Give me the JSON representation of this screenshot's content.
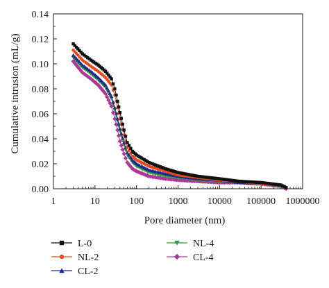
{
  "chart_data": {
    "type": "scatter",
    "xlabel": "Pore diameter (nm)",
    "ylabel": "Cumulative intrusion (mL/g)",
    "xscale": "log",
    "xlim": [
      1,
      1000000
    ],
    "ylim": [
      0.0,
      0.14
    ],
    "grid": false,
    "legend_position": "bottom",
    "x_ticks": [
      {
        "value": 1,
        "label": "1"
      },
      {
        "value": 10,
        "label": "10"
      },
      {
        "value": 100,
        "label": "100"
      },
      {
        "value": 1000,
        "label": "1000"
      },
      {
        "value": 10000,
        "label": "10000"
      },
      {
        "value": 100000,
        "label": "100000"
      },
      {
        "value": 1000000,
        "label": "1000000"
      }
    ],
    "y_ticks": [
      {
        "value": 0.0,
        "label": "0.00"
      },
      {
        "value": 0.02,
        "label": "0.02"
      },
      {
        "value": 0.04,
        "label": "0.04"
      },
      {
        "value": 0.06,
        "label": "0.06"
      },
      {
        "value": 0.08,
        "label": "0.08"
      },
      {
        "value": 0.1,
        "label": "0.10"
      },
      {
        "value": 0.12,
        "label": "0.12"
      },
      {
        "value": 0.14,
        "label": "0.14"
      }
    ],
    "series": [
      {
        "name": "L-0",
        "color": "#111111",
        "marker": "square",
        "points": [
          [
            3,
            0.116
          ],
          [
            5,
            0.108
          ],
          [
            8,
            0.103
          ],
          [
            12,
            0.099
          ],
          [
            18,
            0.094
          ],
          [
            25,
            0.088
          ],
          [
            30,
            0.08
          ],
          [
            35,
            0.07
          ],
          [
            40,
            0.061
          ],
          [
            50,
            0.047
          ],
          [
            60,
            0.037
          ],
          [
            80,
            0.03
          ],
          [
            100,
            0.027
          ],
          [
            200,
            0.021
          ],
          [
            500,
            0.016
          ],
          [
            1000,
            0.013
          ],
          [
            3000,
            0.01
          ],
          [
            10000,
            0.008
          ],
          [
            30000,
            0.006
          ],
          [
            100000,
            0.005
          ],
          [
            300000,
            0.003
          ],
          [
            400000,
            0.001
          ]
        ]
      },
      {
        "name": "NL-2",
        "color": "#e8491d",
        "marker": "circle",
        "points": [
          [
            3,
            0.111
          ],
          [
            5,
            0.103
          ],
          [
            8,
            0.098
          ],
          [
            12,
            0.094
          ],
          [
            18,
            0.089
          ],
          [
            25,
            0.083
          ],
          [
            30,
            0.075
          ],
          [
            35,
            0.065
          ],
          [
            40,
            0.056
          ],
          [
            50,
            0.043
          ],
          [
            60,
            0.033
          ],
          [
            80,
            0.026
          ],
          [
            100,
            0.023
          ],
          [
            200,
            0.018
          ],
          [
            500,
            0.014
          ],
          [
            1000,
            0.011
          ],
          [
            3000,
            0.009
          ],
          [
            10000,
            0.007
          ],
          [
            30000,
            0.006
          ],
          [
            100000,
            0.004
          ],
          [
            300000,
            0.003
          ],
          [
            400000,
            0.001
          ]
        ]
      },
      {
        "name": "CL-2",
        "color": "#1f2a8c",
        "marker": "triangle-up",
        "points": [
          [
            3,
            0.107
          ],
          [
            5,
            0.099
          ],
          [
            8,
            0.094
          ],
          [
            12,
            0.089
          ],
          [
            18,
            0.083
          ],
          [
            25,
            0.074
          ],
          [
            30,
            0.065
          ],
          [
            35,
            0.056
          ],
          [
            40,
            0.048
          ],
          [
            50,
            0.037
          ],
          [
            60,
            0.029
          ],
          [
            80,
            0.023
          ],
          [
            100,
            0.02
          ],
          [
            200,
            0.015
          ],
          [
            500,
            0.012
          ],
          [
            1000,
            0.01
          ],
          [
            3000,
            0.008
          ],
          [
            10000,
            0.007
          ],
          [
            30000,
            0.005
          ],
          [
            100000,
            0.004
          ],
          [
            300000,
            0.003
          ],
          [
            400000,
            0.001
          ]
        ]
      },
      {
        "name": "NL-4",
        "color": "#2e9c3a",
        "marker": "triangle-down",
        "points": [
          [
            3,
            0.105
          ],
          [
            5,
            0.097
          ],
          [
            8,
            0.092
          ],
          [
            12,
            0.087
          ],
          [
            18,
            0.081
          ],
          [
            25,
            0.072
          ],
          [
            30,
            0.063
          ],
          [
            35,
            0.054
          ],
          [
            40,
            0.046
          ],
          [
            50,
            0.035
          ],
          [
            60,
            0.027
          ],
          [
            80,
            0.021
          ],
          [
            100,
            0.018
          ],
          [
            200,
            0.013
          ],
          [
            500,
            0.01
          ],
          [
            1000,
            0.009
          ],
          [
            3000,
            0.007
          ],
          [
            10000,
            0.006
          ],
          [
            30000,
            0.005
          ],
          [
            100000,
            0.004
          ],
          [
            300000,
            0.002
          ],
          [
            400000,
            0.001
          ]
        ]
      },
      {
        "name": "CL-4",
        "color": "#b0379a",
        "marker": "diamond",
        "points": [
          [
            3,
            0.102
          ],
          [
            5,
            0.093
          ],
          [
            8,
            0.088
          ],
          [
            12,
            0.083
          ],
          [
            18,
            0.076
          ],
          [
            25,
            0.066
          ],
          [
            30,
            0.056
          ],
          [
            35,
            0.047
          ],
          [
            40,
            0.038
          ],
          [
            50,
            0.028
          ],
          [
            60,
            0.021
          ],
          [
            80,
            0.016
          ],
          [
            100,
            0.014
          ],
          [
            200,
            0.01
          ],
          [
            500,
            0.008
          ],
          [
            1000,
            0.007
          ],
          [
            3000,
            0.006
          ],
          [
            10000,
            0.005
          ],
          [
            30000,
            0.005
          ],
          [
            100000,
            0.004
          ],
          [
            300000,
            0.002
          ],
          [
            400000,
            0.0
          ]
        ]
      }
    ]
  }
}
